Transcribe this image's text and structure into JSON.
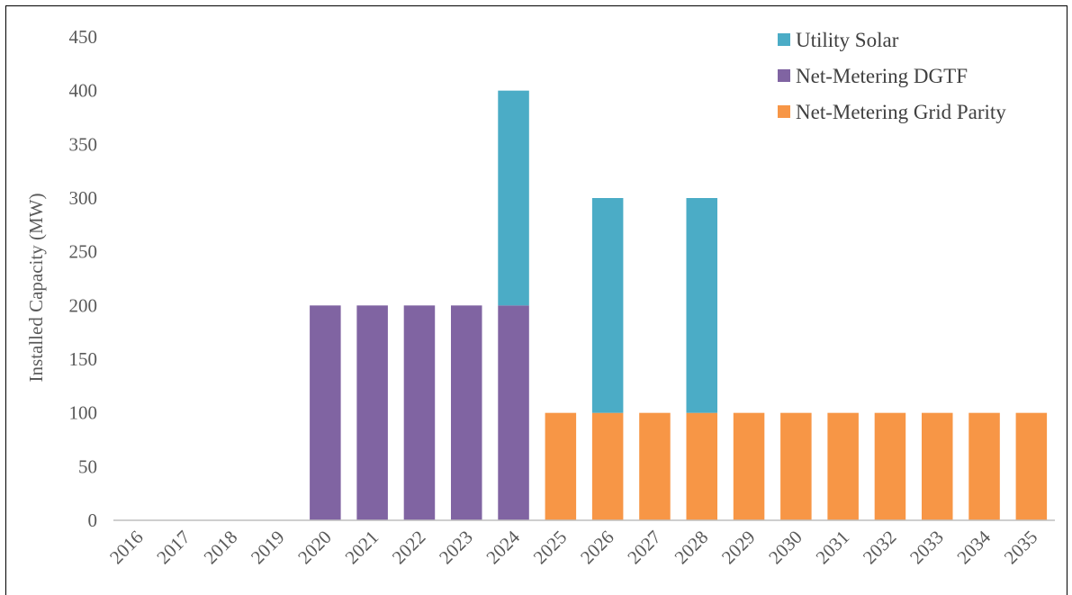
{
  "chart_data": {
    "type": "bar",
    "stacked": true,
    "categories": [
      "2016",
      "2017",
      "2018",
      "2019",
      "2020",
      "2021",
      "2022",
      "2023",
      "2024",
      "2025",
      "2026",
      "2027",
      "2028",
      "2029",
      "2030",
      "2031",
      "2032",
      "2033",
      "2034",
      "2035"
    ],
    "series": [
      {
        "name": "Net-Metering Grid Parity",
        "color": "#F79646",
        "values": [
          0,
          0,
          0,
          0,
          0,
          0,
          0,
          0,
          0,
          100,
          100,
          100,
          100,
          100,
          100,
          100,
          100,
          100,
          100,
          100
        ]
      },
      {
        "name": "Net-Metering DGTF",
        "color": "#8064A2",
        "values": [
          0,
          0,
          0,
          0,
          200,
          200,
          200,
          200,
          200,
          0,
          0,
          0,
          0,
          0,
          0,
          0,
          0,
          0,
          0,
          0
        ]
      },
      {
        "name": "Utility Solar",
        "color": "#4BACC6",
        "values": [
          0,
          0,
          0,
          0,
          0,
          0,
          0,
          0,
          200,
          0,
          200,
          0,
          200,
          0,
          0,
          0,
          0,
          0,
          0,
          0
        ]
      }
    ],
    "legend_order": [
      "Utility Solar",
      "Net-Metering DGTF",
      "Net-Metering Grid Parity"
    ],
    "ylabel": "Installed Capacity (MW)",
    "xlabel": "",
    "ylim": [
      0,
      450
    ],
    "yticks": [
      0,
      50,
      100,
      150,
      200,
      250,
      300,
      350,
      400,
      450
    ],
    "grid": false,
    "legend_position": "top-right"
  }
}
